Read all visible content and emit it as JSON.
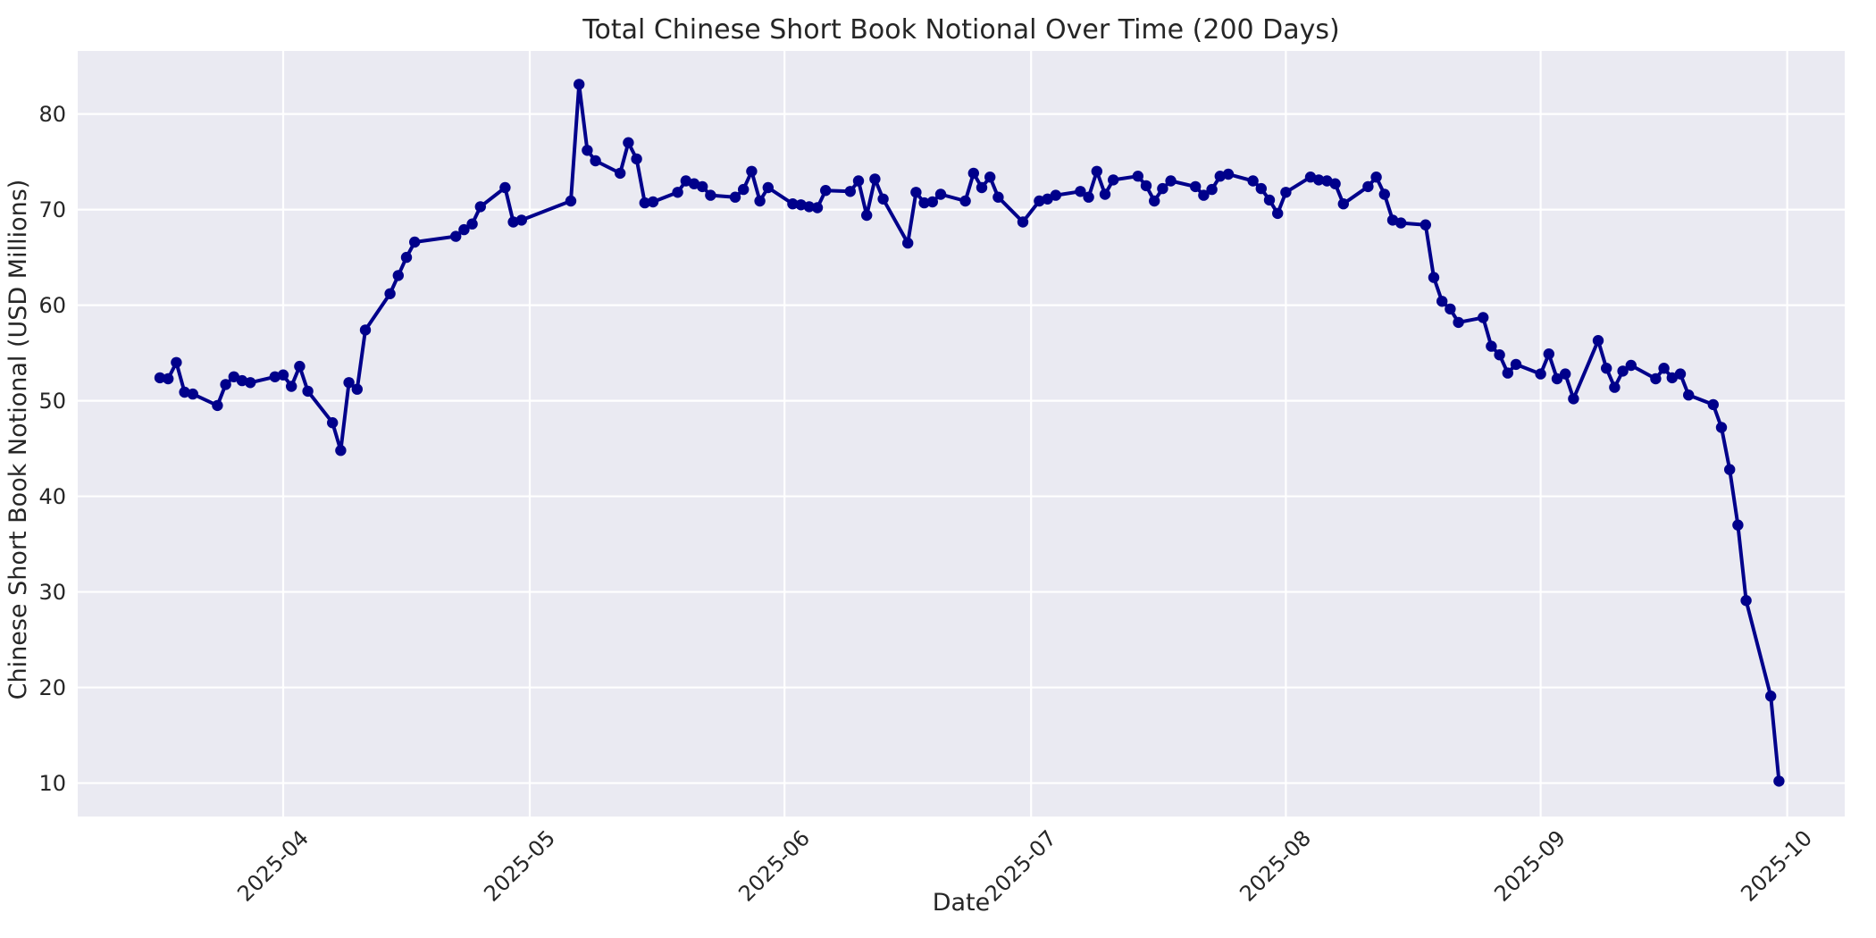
{
  "chart_data": {
    "type": "line",
    "title": "Total Chinese Short Book Notional Over Time (200 Days)",
    "xlabel": "Date",
    "ylabel": "Chinese Short Book Notional (USD Millions)",
    "series_color": "#00008B",
    "plot_background": "#EAEAF2",
    "grid_color": "#FFFFFF",
    "text_color": "#262626",
    "grid": true,
    "legend": false,
    "marker": "o",
    "ylim": [
      6.5,
      86.6
    ],
    "xlim": [
      "2025-03-07",
      "2025-10-08"
    ],
    "y_ticks": [
      10,
      20,
      30,
      40,
      50,
      60,
      70,
      80
    ],
    "x_ticks": [
      {
        "label": "2025-04",
        "date": "2025-04-01"
      },
      {
        "label": "2025-05",
        "date": "2025-05-01"
      },
      {
        "label": "2025-06",
        "date": "2025-06-01"
      },
      {
        "label": "2025-07",
        "date": "2025-07-01"
      },
      {
        "label": "2025-08",
        "date": "2025-08-01"
      },
      {
        "label": "2025-09",
        "date": "2025-09-01"
      },
      {
        "label": "2025-10",
        "date": "2025-10-01"
      }
    ],
    "x": [
      "2025-03-17",
      "2025-03-18",
      "2025-03-19",
      "2025-03-20",
      "2025-03-21",
      "2025-03-24",
      "2025-03-25",
      "2025-03-26",
      "2025-03-27",
      "2025-03-28",
      "2025-03-31",
      "2025-04-01",
      "2025-04-02",
      "2025-04-03",
      "2025-04-04",
      "2025-04-07",
      "2025-04-08",
      "2025-04-09",
      "2025-04-10",
      "2025-04-11",
      "2025-04-14",
      "2025-04-15",
      "2025-04-16",
      "2025-04-17",
      "2025-04-22",
      "2025-04-23",
      "2025-04-24",
      "2025-04-25",
      "2025-04-28",
      "2025-04-29",
      "2025-04-30",
      "2025-05-06",
      "2025-05-07",
      "2025-05-08",
      "2025-05-09",
      "2025-05-12",
      "2025-05-13",
      "2025-05-14",
      "2025-05-15",
      "2025-05-16",
      "2025-05-19",
      "2025-05-20",
      "2025-05-21",
      "2025-05-22",
      "2025-05-23",
      "2025-05-26",
      "2025-05-27",
      "2025-05-28",
      "2025-05-29",
      "2025-05-30",
      "2025-06-02",
      "2025-06-03",
      "2025-06-04",
      "2025-06-05",
      "2025-06-06",
      "2025-06-09",
      "2025-06-10",
      "2025-06-11",
      "2025-06-12",
      "2025-06-13",
      "2025-06-16",
      "2025-06-17",
      "2025-06-18",
      "2025-06-19",
      "2025-06-20",
      "2025-06-23",
      "2025-06-24",
      "2025-06-25",
      "2025-06-26",
      "2025-06-27",
      "2025-06-30",
      "2025-07-02",
      "2025-07-03",
      "2025-07-04",
      "2025-07-07",
      "2025-07-08",
      "2025-07-09",
      "2025-07-10",
      "2025-07-11",
      "2025-07-14",
      "2025-07-15",
      "2025-07-16",
      "2025-07-17",
      "2025-07-18",
      "2025-07-21",
      "2025-07-22",
      "2025-07-23",
      "2025-07-24",
      "2025-07-25",
      "2025-07-28",
      "2025-07-29",
      "2025-07-30",
      "2025-07-31",
      "2025-08-01",
      "2025-08-04",
      "2025-08-05",
      "2025-08-06",
      "2025-08-07",
      "2025-08-08",
      "2025-08-11",
      "2025-08-12",
      "2025-08-13",
      "2025-08-14",
      "2025-08-15",
      "2025-08-18",
      "2025-08-19",
      "2025-08-20",
      "2025-08-21",
      "2025-08-22",
      "2025-08-25",
      "2025-08-26",
      "2025-08-27",
      "2025-08-28",
      "2025-08-29",
      "2025-09-01",
      "2025-09-02",
      "2025-09-03",
      "2025-09-04",
      "2025-09-05",
      "2025-09-08",
      "2025-09-09",
      "2025-09-10",
      "2025-09-11",
      "2025-09-12",
      "2025-09-15",
      "2025-09-16",
      "2025-09-17",
      "2025-09-18",
      "2025-09-19",
      "2025-09-22",
      "2025-09-23",
      "2025-09-24",
      "2025-09-25",
      "2025-09-26",
      "2025-09-29",
      "2025-09-30"
    ],
    "values": [
      52.4,
      52.3,
      54.0,
      50.9,
      50.7,
      49.5,
      51.7,
      52.5,
      52.1,
      51.9,
      52.5,
      52.7,
      51.5,
      53.6,
      51.0,
      47.7,
      44.8,
      51.9,
      51.2,
      57.4,
      61.2,
      63.1,
      65.0,
      66.6,
      67.2,
      67.9,
      68.5,
      70.3,
      72.3,
      68.7,
      68.9,
      70.9,
      83.1,
      76.2,
      75.1,
      73.8,
      77.0,
      75.3,
      70.7,
      70.8,
      71.8,
      73.0,
      72.7,
      72.4,
      71.5,
      71.3,
      72.1,
      74.0,
      70.9,
      72.3,
      70.6,
      70.5,
      70.3,
      70.2,
      72.0,
      71.9,
      73.0,
      69.4,
      73.2,
      71.1,
      66.5,
      71.8,
      70.7,
      70.8,
      71.6,
      70.9,
      73.8,
      72.3,
      73.4,
      71.3,
      68.7,
      70.9,
      71.1,
      71.5,
      71.9,
      71.3,
      74.0,
      71.6,
      73.1,
      73.5,
      72.5,
      70.9,
      72.2,
      73.0,
      72.4,
      71.5,
      72.1,
      73.5,
      73.7,
      73.0,
      72.2,
      71.0,
      69.6,
      71.8,
      73.4,
      73.1,
      73.0,
      72.7,
      70.6,
      72.4,
      73.4,
      71.6,
      68.9,
      68.6,
      68.4,
      62.9,
      60.4,
      59.6,
      58.2,
      58.7,
      55.7,
      54.8,
      52.9,
      53.8,
      52.8,
      54.9,
      52.3,
      52.8,
      50.2,
      56.3,
      53.4,
      51.4,
      53.1,
      53.7,
      52.3,
      53.4,
      52.4,
      52.8,
      50.6,
      49.6,
      47.2,
      42.8,
      37.0,
      29.1,
      19.1,
      10.2
    ]
  }
}
